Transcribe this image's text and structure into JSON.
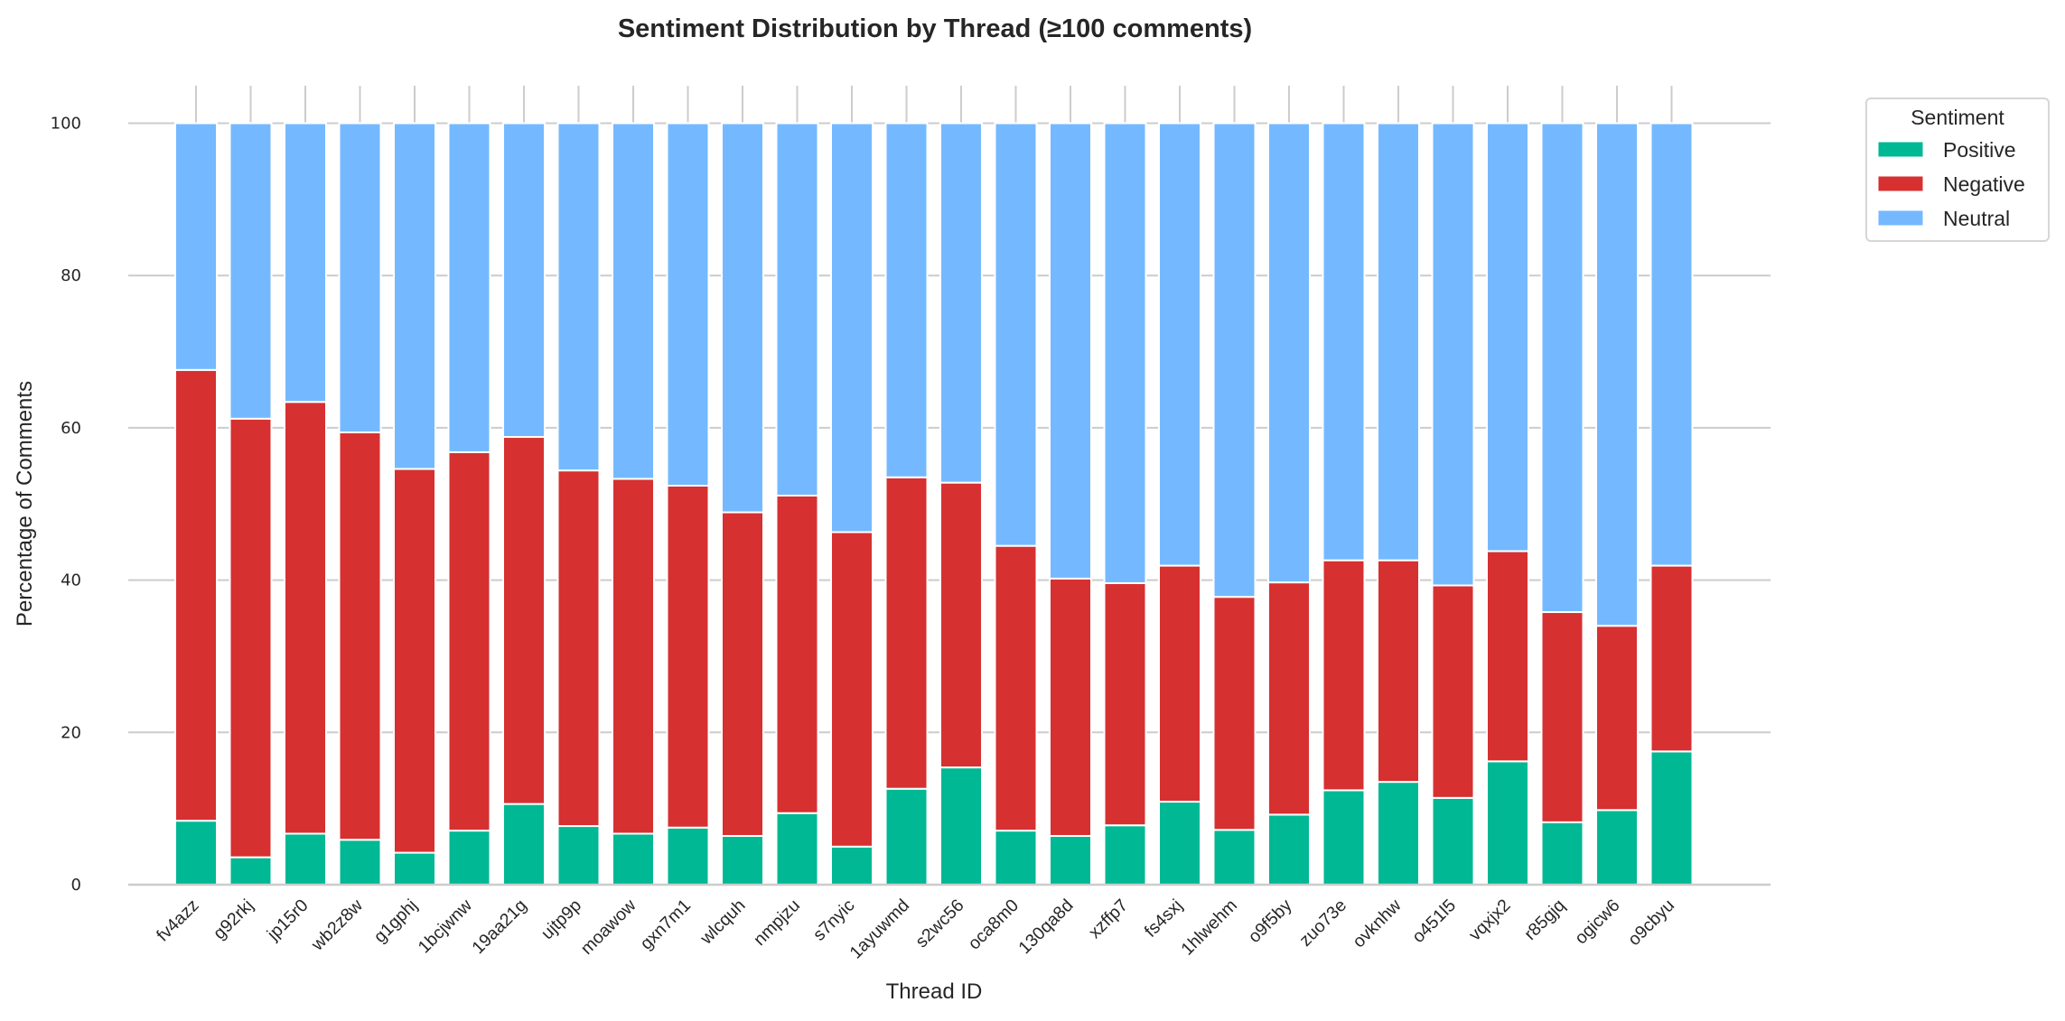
{
  "chart_data": {
    "type": "bar",
    "stacked": true,
    "title": "Sentiment Distribution by Thread (≥100 comments)",
    "xlabel": "Thread ID",
    "ylabel": "Percentage of Comments",
    "ylim": [
      0,
      100
    ],
    "yticks": [
      0,
      20,
      40,
      60,
      80,
      100
    ],
    "grid": true,
    "legend": {
      "title": "Sentiment",
      "placement": "outside-top-right",
      "entries": [
        "Positive",
        "Negative",
        "Neutral"
      ]
    },
    "categories": [
      "fv4azz",
      "g92rkj",
      "jp15r0",
      "wb2z8w",
      "g1gphj",
      "1bcjwnw",
      "19aa21g",
      "ujtp9p",
      "moawow",
      "gxn7m1",
      "wlcquh",
      "nmpjzu",
      "s7nyic",
      "1ayuwmd",
      "s2wc56",
      "oca8m0",
      "130qa8d",
      "xzffp7",
      "fs4sxj",
      "1hlwehm",
      "o9f5by",
      "zuo73e",
      "ovknhw",
      "o451l5",
      "vqxjx2",
      "r85gjq",
      "ogicw6",
      "o9cbyu"
    ],
    "series": [
      {
        "name": "Positive",
        "color": "#00b894",
        "values": [
          8.4,
          3.6,
          6.7,
          5.9,
          4.2,
          7.1,
          10.6,
          7.7,
          6.7,
          7.5,
          6.4,
          9.4,
          5.0,
          12.6,
          15.4,
          7.1,
          6.4,
          7.8,
          10.9,
          7.2,
          9.2,
          12.4,
          13.5,
          11.4,
          16.2,
          8.2,
          9.8,
          17.5
        ]
      },
      {
        "name": "Negative",
        "color": "#d63031",
        "values": [
          59.2,
          57.6,
          56.7,
          53.5,
          50.4,
          49.7,
          48.2,
          46.7,
          46.6,
          44.9,
          42.5,
          41.7,
          41.3,
          40.9,
          37.4,
          37.4,
          33.8,
          31.8,
          31.0,
          30.6,
          30.5,
          30.2,
          29.1,
          27.9,
          27.6,
          27.6,
          24.2,
          24.4
        ]
      },
      {
        "name": "Neutral",
        "color": "#74b9ff",
        "values": [
          32.4,
          38.8,
          36.6,
          40.6,
          45.4,
          43.2,
          41.2,
          45.6,
          46.7,
          47.6,
          51.1,
          48.9,
          53.7,
          46.5,
          47.2,
          55.5,
          59.8,
          60.4,
          58.1,
          62.2,
          60.3,
          57.4,
          57.4,
          60.7,
          56.2,
          64.2,
          66.0,
          58.1
        ]
      }
    ]
  }
}
